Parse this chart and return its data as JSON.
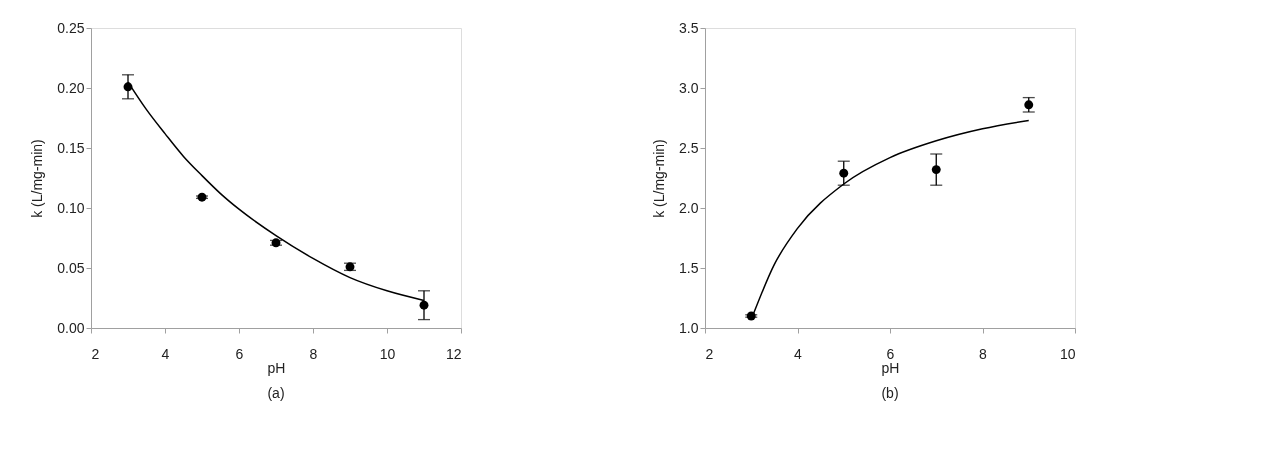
{
  "chart_data": [
    {
      "type": "scatter",
      "xlabel": "pH",
      "ylabel": "k (L/mg-min)",
      "annotations": [
        "(a)"
      ],
      "xlim": [
        2,
        12
      ],
      "xticks": [
        2,
        4,
        6,
        8,
        10,
        12
      ],
      "ylim": [
        0,
        0.25
      ],
      "yticks": [
        {
          "value": 0,
          "label": "0.00"
        },
        0.05,
        {
          "value": 0.1,
          "label": "0.10"
        },
        0.15,
        {
          "value": 0.2,
          "label": "0.20"
        },
        0.25
      ],
      "grid": false,
      "series": [
        {
          "marker": "circle",
          "color": "#000000",
          "x": [
            3,
            5,
            7,
            9,
            11
          ],
          "values": [
            0.201,
            0.109,
            0.071,
            0.051,
            0.019
          ],
          "errors": [
            0.01,
            0.001,
            0.002,
            0.003,
            0.012
          ]
        },
        {
          "type": "line",
          "color": "#000000",
          "line_style": "solid",
          "x": [
            3,
            3.5,
            4,
            4.5,
            5,
            5.5,
            6,
            7,
            8,
            9,
            10,
            11
          ],
          "values": [
            0.205,
            0.182,
            0.162,
            0.143,
            0.127,
            0.112,
            0.099,
            0.077,
            0.058,
            0.042,
            0.031,
            0.023
          ]
        }
      ]
    },
    {
      "type": "scatter",
      "xlabel": "pH",
      "ylabel": "k (L/mg-min)",
      "annotations": [
        "(b)"
      ],
      "xlim": [
        2,
        10
      ],
      "xticks": [
        2,
        4,
        6,
        8,
        10
      ],
      "ylim": [
        1,
        3.5
      ],
      "yticks": [
        {
          "value": 1,
          "label": "1.0"
        },
        1.5,
        {
          "value": 2,
          "label": "2.0"
        },
        2.5,
        {
          "value": 3,
          "label": "3.0"
        },
        3.5
      ],
      "grid": false,
      "series": [
        {
          "marker": "circle",
          "color": "#000000",
          "x": [
            3,
            5,
            7,
            9
          ],
          "values": [
            1.1,
            2.29,
            2.32,
            2.86
          ],
          "errors": [
            0.01,
            0.1,
            0.13,
            0.06
          ]
        },
        {
          "type": "line",
          "color": "#000000",
          "line_style": "solid",
          "x": [
            3.05,
            3.5,
            4,
            5,
            6,
            7,
            8,
            9
          ],
          "values": [
            1.12,
            1.53,
            1.83,
            2.2,
            2.42,
            2.56,
            2.66,
            2.73
          ]
        }
      ]
    }
  ]
}
